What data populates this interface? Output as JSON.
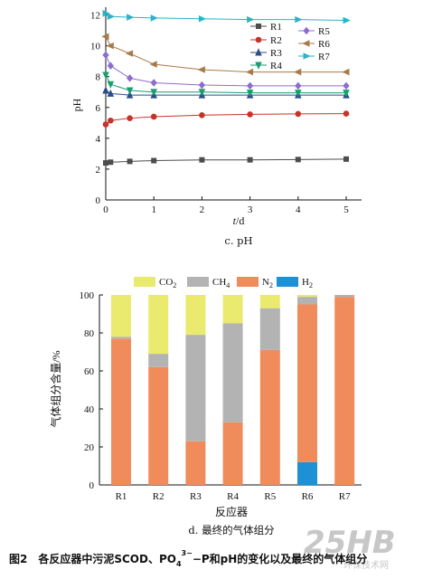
{
  "chart_data": [
    {
      "type": "line",
      "caption": "c. pH",
      "ylabel": "pH",
      "xlabel_italic": "t",
      "xlabel_rest": "/d",
      "xlim": [
        0,
        5.3
      ],
      "ylim": [
        0,
        12.5
      ],
      "xticks": [
        "0",
        "1",
        "2",
        "3",
        "4",
        "5"
      ],
      "yticks": [
        "0",
        "2",
        "4",
        "6",
        "8",
        "10",
        "12"
      ],
      "series": [
        {
          "name": "R1",
          "color": "#4d4d4d",
          "marker": "square",
          "x": [
            0,
            0.1,
            0.5,
            1,
            2,
            3,
            4,
            5
          ],
          "y": [
            2.4,
            2.45,
            2.5,
            2.55,
            2.6,
            2.6,
            2.62,
            2.65
          ]
        },
        {
          "name": "R2",
          "color": "#c8322a",
          "marker": "circle",
          "x": [
            0,
            0.1,
            0.5,
            1,
            2,
            3,
            4,
            5
          ],
          "y": [
            4.9,
            5.15,
            5.3,
            5.4,
            5.5,
            5.55,
            5.58,
            5.6
          ]
        },
        {
          "name": "R3",
          "color": "#2b4d8c",
          "marker": "triangle",
          "x": [
            0,
            0.1,
            0.5,
            1,
            2,
            3,
            4,
            5
          ],
          "y": [
            7.1,
            6.9,
            6.8,
            6.8,
            6.8,
            6.8,
            6.8,
            6.8
          ]
        },
        {
          "name": "R4",
          "color": "#1a9e6e",
          "marker": "triangle-down",
          "x": [
            0,
            0.1,
            0.5,
            1,
            2,
            3,
            4,
            5
          ],
          "y": [
            8.1,
            7.5,
            7.1,
            7.0,
            7.0,
            6.95,
            6.95,
            6.95
          ]
        },
        {
          "name": "R5",
          "color": "#8e6cd0",
          "marker": "diamond",
          "x": [
            0,
            0.1,
            0.5,
            1,
            2,
            3,
            4,
            5
          ],
          "y": [
            9.4,
            8.7,
            7.9,
            7.6,
            7.45,
            7.4,
            7.4,
            7.4
          ]
        },
        {
          "name": "R6",
          "color": "#a87a4a",
          "marker": "triangle-left",
          "x": [
            0,
            0.1,
            0.5,
            1,
            2,
            3,
            4,
            5
          ],
          "y": [
            10.6,
            10.0,
            9.5,
            8.8,
            8.45,
            8.3,
            8.3,
            8.3
          ]
        },
        {
          "name": "R7",
          "color": "#2ab3c8",
          "marker": "triangle-right",
          "x": [
            0,
            0.1,
            0.5,
            1,
            2,
            3,
            4,
            5
          ],
          "y": [
            12.1,
            11.9,
            11.85,
            11.8,
            11.75,
            11.7,
            11.7,
            11.65
          ]
        }
      ]
    },
    {
      "type": "bar",
      "stacked": true,
      "caption": "d. 最终的气体组分",
      "xlabel": "反应器",
      "ylabel": "气体组分含量/%",
      "ylim": [
        0,
        100
      ],
      "yticks": [
        "0",
        "20",
        "40",
        "60",
        "80",
        "100"
      ],
      "categories": [
        "R1",
        "R2",
        "R3",
        "R4",
        "R5",
        "R6",
        "R7"
      ],
      "series": [
        {
          "name": "H2",
          "legend_main": "H",
          "legend_sub": "2",
          "color": "#1e90d6",
          "values": [
            0,
            0,
            0,
            0,
            0,
            12,
            0
          ]
        },
        {
          "name": "N2",
          "legend_main": "N",
          "legend_sub": "2",
          "color": "#f08c5c",
          "values": [
            77,
            62,
            23,
            33,
            71,
            83,
            99
          ]
        },
        {
          "name": "CH4",
          "legend_main": "CH",
          "legend_sub": "4",
          "color": "#b3b3b3",
          "values": [
            1,
            7,
            56,
            52,
            22,
            4,
            1
          ]
        },
        {
          "name": "CO2",
          "legend_main": "CO",
          "legend_sub": "2",
          "color": "#eaea6e",
          "values": [
            22,
            31,
            21,
            15,
            7,
            1,
            0
          ]
        }
      ],
      "legend_order": [
        "CO2",
        "CH4",
        "N2",
        "H2"
      ]
    }
  ],
  "figure_caption": {
    "pre": "图2　各反应器中污泥SCOD、PO",
    "sub": "4",
    "sup": "3−",
    "post": "−P和pH的变化以及最终的气体组分"
  },
  "watermark": {
    "text": "25HB",
    "subtext": "环保技术网",
    "color": "#c7c7c7"
  }
}
